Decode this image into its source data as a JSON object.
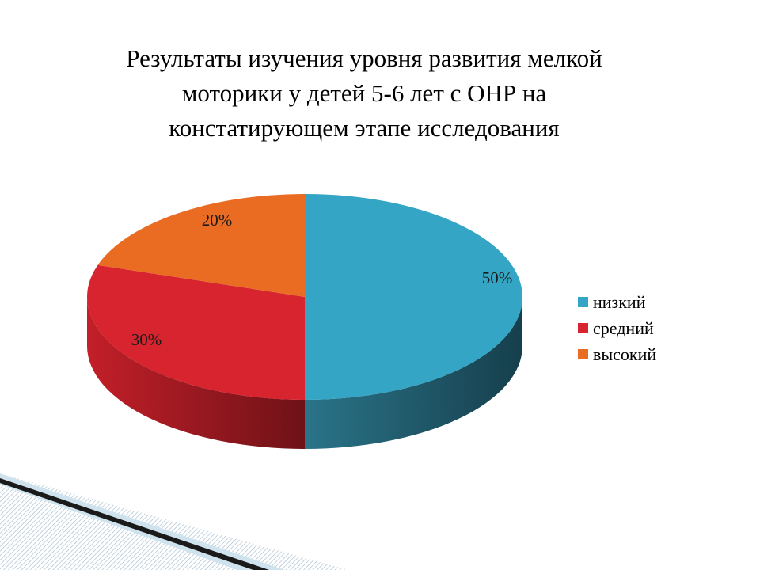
{
  "chart_data": {
    "type": "pie",
    "title": "Результаты изучения уровня развития мелкой моторики у детей 5-6 лет с ОНР на констатирующем этапе исследования",
    "categories": [
      "низкий",
      "средний",
      "высокий"
    ],
    "values": [
      50,
      30,
      20
    ],
    "data_labels": [
      "50%",
      "30%",
      "20%"
    ],
    "colors": [
      "#34a5c4",
      "#d7242e",
      "#ea6b22"
    ],
    "side_colors": [
      "#1d5c6f",
      "#8c1a20",
      "#9a4415"
    ],
    "legend_position": "right",
    "style": "3d-pie"
  }
}
